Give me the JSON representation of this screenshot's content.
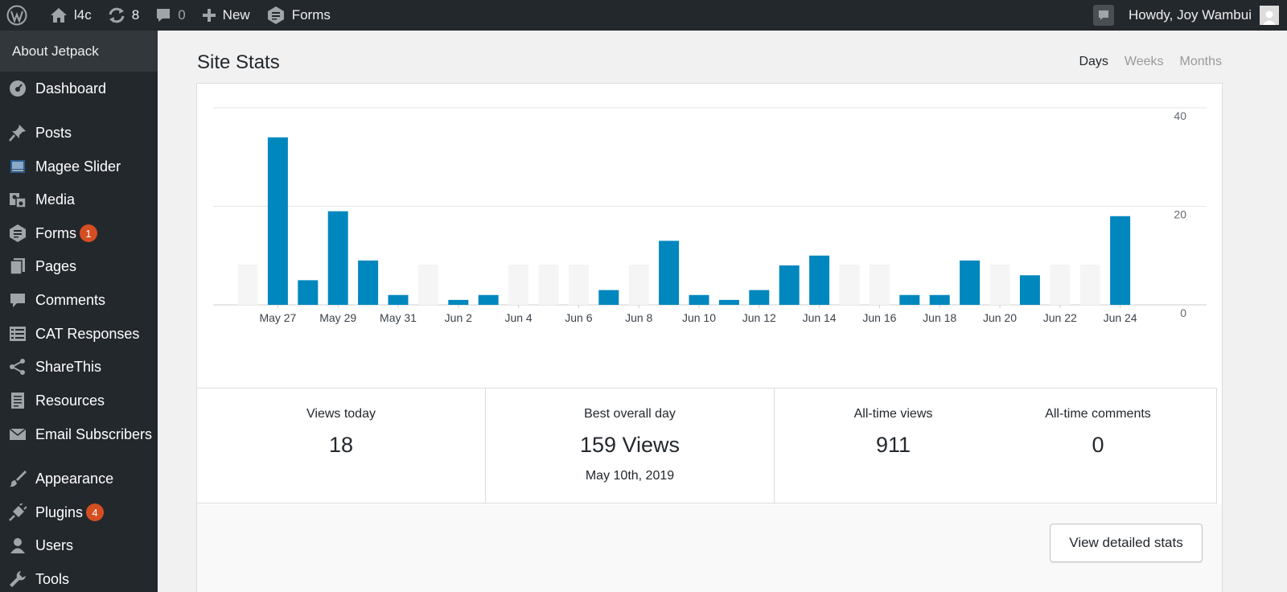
{
  "adminbar": {
    "site_name": "l4c",
    "updates_count": "8",
    "comments_count": "0",
    "new_label": "New",
    "forms_label": "Forms",
    "greeting": "Howdy, Joy Wambui"
  },
  "sidebar": {
    "submenu_active": "About Jetpack",
    "items": [
      {
        "label": "Dashboard",
        "icon": "dashboard-icon"
      },
      {
        "label": "Posts",
        "icon": "pin-icon"
      },
      {
        "label": "Magee Slider",
        "icon": "slider-icon"
      },
      {
        "label": "Media",
        "icon": "media-icon"
      },
      {
        "label": "Forms",
        "icon": "forms-icon",
        "badge": "1"
      },
      {
        "label": "Pages",
        "icon": "pages-icon"
      },
      {
        "label": "Comments",
        "icon": "comment-icon"
      },
      {
        "label": "CAT Responses",
        "icon": "table-icon"
      },
      {
        "label": "ShareThis",
        "icon": "share-icon"
      },
      {
        "label": "Resources",
        "icon": "document-icon"
      },
      {
        "label": "Email Subscribers",
        "icon": "email-icon"
      },
      {
        "label": "Appearance",
        "icon": "brush-icon"
      },
      {
        "label": "Plugins",
        "icon": "plugin-icon",
        "badge": "4"
      },
      {
        "label": "Users",
        "icon": "user-icon"
      },
      {
        "label": "Tools",
        "icon": "wrench-icon"
      }
    ]
  },
  "page": {
    "title": "Site Stats",
    "tabs": [
      "Days",
      "Weeks",
      "Months"
    ],
    "active_tab": "Days"
  },
  "chart_data": {
    "type": "bar",
    "title": "",
    "xlabel": "",
    "ylabel": "",
    "ylim": [
      0,
      40
    ],
    "y_ticks": [
      "40",
      "20",
      "0"
    ],
    "grid": true,
    "bar_color": "#0087be",
    "weekend_shade_color": "#f5f5f5",
    "categories": [
      "May 26",
      "May 27",
      "May 28",
      "May 29",
      "May 30",
      "May 31",
      "Jun 1",
      "Jun 2",
      "Jun 3",
      "Jun 4",
      "Jun 5",
      "Jun 6",
      "Jun 7",
      "Jun 8",
      "Jun 9",
      "Jun 10",
      "Jun 11",
      "Jun 12",
      "Jun 13",
      "Jun 14",
      "Jun 15",
      "Jun 16",
      "Jun 17",
      "Jun 18",
      "Jun 19",
      "Jun 20",
      "Jun 21",
      "Jun 22",
      "Jun 23",
      "Jun 24"
    ],
    "tick_labels": [
      "",
      "May 27",
      "",
      "May 29",
      "",
      "May 31",
      "",
      "Jun 2",
      "",
      "Jun 4",
      "",
      "Jun 6",
      "",
      "Jun 8",
      "",
      "Jun 10",
      "",
      "Jun 12",
      "",
      "Jun 14",
      "",
      "Jun 16",
      "",
      "Jun 18",
      "",
      "Jun 20",
      "",
      "Jun 22",
      "",
      "Jun 24"
    ],
    "values": [
      0,
      34,
      5,
      19,
      9,
      2,
      0,
      1,
      2,
      0,
      0,
      0,
      3,
      0,
      13,
      2,
      1,
      3,
      8,
      10,
      0,
      0,
      2,
      2,
      9,
      0,
      6,
      0,
      0,
      18
    ]
  },
  "stats": {
    "views_today_label": "Views today",
    "views_today_value": "18",
    "best_day_label": "Best overall day",
    "best_day_value": "159 Views",
    "best_day_date": "May 10th, 2019",
    "alltime_views_label": "All-time views",
    "alltime_views_value": "911",
    "alltime_comments_label": "All-time comments",
    "alltime_comments_value": "0"
  },
  "footer": {
    "button_label": "View detailed stats"
  }
}
